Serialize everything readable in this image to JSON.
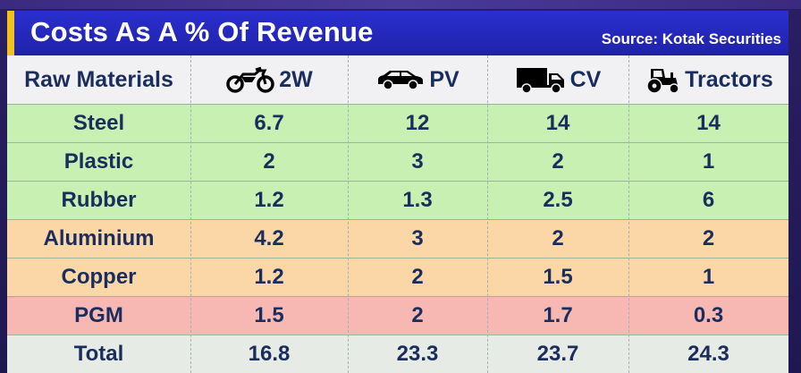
{
  "header": {
    "title": "Costs As A % Of Revenue",
    "source": "Source: Kotak Securities"
  },
  "colors": {
    "header_bg": "#2b2fd0",
    "accent_bar": "#f2c21b",
    "row_green": "#c8f0b2",
    "row_orange": "#fbd7a8",
    "row_red": "#f7b8b4",
    "row_total": "#e6ebe6",
    "text": "#1a2d5c"
  },
  "chart_data": {
    "type": "table",
    "title": "Costs As A % Of Revenue",
    "source": "Source: Kotak Securities",
    "row_header_label": "Raw Materials",
    "columns": [
      {
        "label": "2W",
        "icon": "motorcycle-icon"
      },
      {
        "label": "PV",
        "icon": "car-icon"
      },
      {
        "label": "CV",
        "icon": "truck-icon"
      },
      {
        "label": "Tractors",
        "icon": "tractor-icon"
      }
    ],
    "rows": [
      {
        "label": "Steel",
        "group": "green",
        "values": [
          "6.7",
          "12",
          "14",
          "14"
        ]
      },
      {
        "label": "Plastic",
        "group": "green",
        "values": [
          "2",
          "3",
          "2",
          "1"
        ]
      },
      {
        "label": "Rubber",
        "group": "green",
        "values": [
          "1.2",
          "1.3",
          "2.5",
          "6"
        ]
      },
      {
        "label": "Aluminium",
        "group": "orange",
        "values": [
          "4.2",
          "3",
          "2",
          "2"
        ]
      },
      {
        "label": "Copper",
        "group": "orange",
        "values": [
          "1.2",
          "2",
          "1.5",
          "1"
        ]
      },
      {
        "label": "PGM",
        "group": "red",
        "values": [
          "1.5",
          "2",
          "1.7",
          "0.3"
        ]
      },
      {
        "label": "Total",
        "group": "total",
        "values": [
          "16.8",
          "23.3",
          "23.7",
          "24.3"
        ]
      }
    ]
  }
}
